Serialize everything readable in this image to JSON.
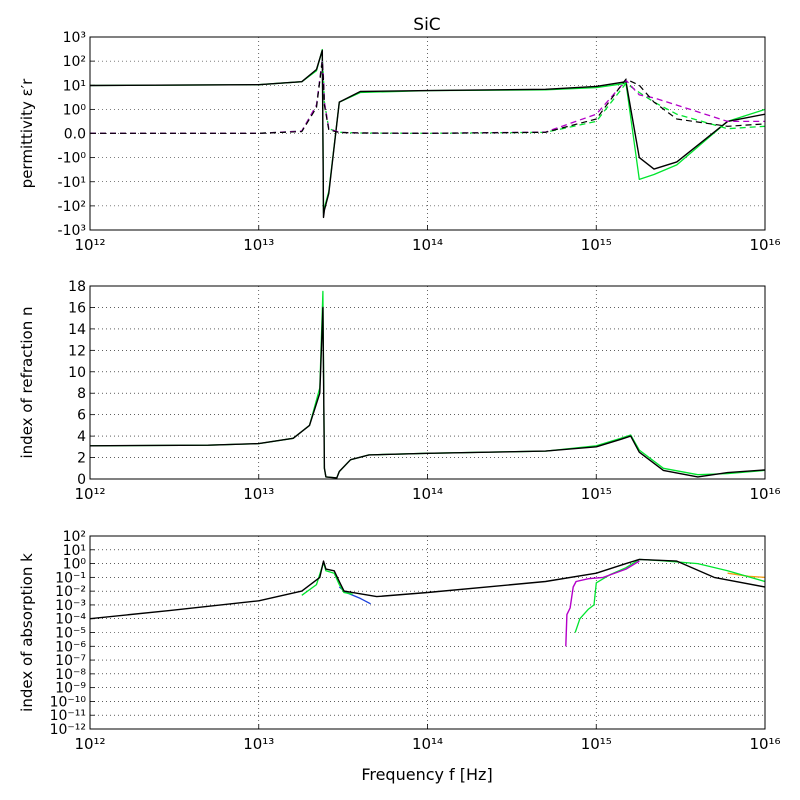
{
  "title": "SiC",
  "colors": {
    "black": "#000000",
    "green": "#00e52e",
    "blue": "#1a3fdc",
    "purple": "#b400c8",
    "orange": "#f39c12",
    "grid": "#000000"
  },
  "chart_data": [
    {
      "type": "line",
      "name": "permittivity",
      "ylabel": "permittivity ε′r",
      "xscale": "log",
      "yscale": "symlog",
      "xlim": [
        1000000000000.0,
        1e+16
      ],
      "ylim": [
        -1000,
        1000
      ],
      "grid": true,
      "x_tick_labels": [
        "10¹²",
        "10¹³",
        "10¹⁴",
        "10¹⁵",
        "10¹⁶"
      ],
      "y_tick_labels": [
        "10³",
        "10²",
        "10¹",
        "10⁰",
        "0.0",
        "-10⁰",
        "-10¹",
        "-10²",
        "-10³"
      ],
      "x_points_hz": [
        1000000000000.0,
        10000000000000.0,
        18000000000000.0,
        22000000000000.0,
        23800000000000.0,
        24200000000000.0,
        24500000000000.0,
        26000000000000.0,
        30000000000000.0,
        40000000000000.0,
        100000000000000.0,
        500000000000000.0,
        1000000000000000.0,
        1500000000000000.0,
        1800000000000000.0,
        2200000000000000.0,
        3000000000000000.0,
        6000000000000000.0,
        1e+16
      ],
      "series": [
        {
          "values": [
            9.8,
            10.5,
            14,
            40,
            300,
            -200,
            -120,
            -25,
            2.0,
            5,
            6,
            6.5,
            8,
            12,
            -8,
            -5,
            -2,
            0.5,
            1.0
          ]
        },
        {
          "values": [
            9.8,
            10.5,
            14,
            45,
            280,
            -300,
            -150,
            -30,
            2.0,
            5.5,
            6,
            6.8,
            9,
            14,
            -1,
            -3,
            -1.5,
            0.5,
            0.8
          ]
        },
        {
          "values": [
            0.01,
            0.01,
            0.1,
            1.5,
            120,
            20,
            2,
            0.2,
            0.05,
            0.02,
            0.01,
            0.05,
            0.5,
            12,
            5,
            2,
            0.8,
            0.2,
            0.3
          ]
        },
        {
          "values": [
            0.01,
            0.01,
            0.1,
            1.5,
            110,
            18,
            2,
            0.2,
            0.05,
            0.02,
            0.01,
            0.06,
            0.8,
            16,
            4,
            3,
            1.5,
            0.5,
            0.5
          ]
        },
        {
          "values": [
            0.01,
            0.01,
            0.08,
            1.2,
            100,
            15,
            1.5,
            0.15,
            0.04,
            0.02,
            0.01,
            0.05,
            0.6,
            18,
            10,
            2,
            0.6,
            0.3,
            0.4
          ]
        }
      ]
    },
    {
      "type": "line",
      "name": "refraction",
      "ylabel": "index of refraction n",
      "xscale": "log",
      "yscale": "linear",
      "xlim": [
        1000000000000.0,
        1e+16
      ],
      "ylim": [
        0,
        18
      ],
      "yticks": [
        0,
        2,
        4,
        6,
        8,
        10,
        12,
        14,
        16,
        18
      ],
      "grid": true,
      "x_tick_labels": [
        "10¹²",
        "10¹³",
        "10¹⁴",
        "10¹⁵",
        "10¹⁶"
      ],
      "x_points_hz": [
        1000000000000.0,
        5000000000000.0,
        10000000000000.0,
        16000000000000.0,
        20000000000000.0,
        23000000000000.0,
        24000000000000.0,
        24500000000000.0,
        25000000000000.0,
        29000000000000.0,
        30000000000000.0,
        35000000000000.0,
        45000000000000.0,
        100000000000000.0,
        500000000000000.0,
        1000000000000000.0,
        1400000000000000.0,
        1600000000000000.0,
        1800000000000000.0,
        2500000000000000.0,
        4000000000000000.0,
        6000000000000000.0,
        1e+16
      ],
      "series": [
        {
          "values": [
            3.1,
            3.15,
            3.3,
            3.8,
            5.0,
            8.0,
            16.0,
            1.0,
            0.2,
            0.1,
            0.7,
            1.8,
            2.25,
            2.4,
            2.6,
            3.0,
            3.7,
            4.0,
            2.5,
            0.8,
            0.2,
            0.6,
            0.85
          ]
        },
        {
          "values": [
            3.1,
            3.15,
            3.3,
            3.8,
            5.0,
            8.5,
            17.5,
            1.0,
            0.2,
            0.1,
            0.7,
            1.8,
            2.25,
            2.4,
            2.6,
            3.1,
            3.8,
            4.1,
            2.7,
            1.0,
            0.4,
            0.5,
            0.8
          ]
        }
      ]
    },
    {
      "type": "line",
      "name": "absorption",
      "ylabel": "index of absorption k",
      "xscale": "log",
      "yscale": "log",
      "xlim": [
        1000000000000.0,
        1e+16
      ],
      "ylim": [
        1e-12,
        100
      ],
      "grid": true,
      "x_tick_labels": [
        "10¹²",
        "10¹³",
        "10¹⁴",
        "10¹⁵",
        "10¹⁶"
      ],
      "y_tick_labels": [
        "10²",
        "10¹",
        "10⁰",
        "10⁻¹",
        "10⁻²",
        "10⁻³",
        "10⁻⁴",
        "10⁻⁵",
        "10⁻⁶",
        "10⁻⁷",
        "10⁻⁸",
        "10⁻⁹",
        "10⁻¹⁰",
        "10⁻¹¹",
        "10⁻¹²"
      ],
      "series": [
        {
          "x": [
            1000000000000.0,
            3000000000000.0,
            10000000000000.0,
            18000000000000.0,
            23000000000000.0,
            24200000000000.0,
            25000000000000.0,
            28000000000000.0,
            30000000000000.0,
            32000000000000.0,
            50000000000000.0,
            100000000000000.0,
            500000000000000.0,
            1000000000000000.0,
            1500000000000000.0,
            1800000000000000.0,
            3000000000000000.0,
            5000000000000000.0,
            1e+16
          ],
          "y": [
            0.0001,
            0.0004,
            0.002,
            0.01,
            0.1,
            1.5,
            0.4,
            0.3,
            0.05,
            0.01,
            0.004,
            0.008,
            0.05,
            0.2,
            1.0,
            2.0,
            1.5,
            0.1,
            0.02
          ]
        },
        {
          "x": [
            18000000000000.0,
            22000000000000.0,
            24200000000000.0,
            25000000000000.0,
            28000000000000.0,
            30000000000000.0,
            32000000000000.0,
            36000000000000.0
          ],
          "y": [
            0.005,
            0.03,
            1.2,
            0.3,
            0.2,
            0.03,
            0.008,
            0.006
          ]
        },
        {
          "x": [
            30000000000000.0,
            33000000000000.0,
            40000000000000.0,
            46000000000000.0
          ],
          "y": [
            0.02,
            0.008,
            0.003,
            0.0012
          ]
        },
        {
          "x": [
            660000000000000.0,
            670000000000000.0,
            700000000000000.0,
            730000000000000.0,
            760000000000000.0,
            900000000000000.0,
            1100000000000000.0,
            1500000000000000.0,
            1800000000000000.0
          ],
          "y": [
            1e-06,
            0.0002,
            0.0006,
            0.02,
            0.05,
            0.08,
            0.1,
            0.4,
            1.5
          ]
        },
        {
          "x": [
            750000000000000.0,
            800000000000000.0,
            900000000000000.0,
            970000000000000.0,
            1000000000000000.0,
            1200000000000000.0,
            1500000000000000.0,
            1800000000000000.0,
            2500000000000000.0,
            4000000000000000.0,
            6000000000000000.0,
            1e+16
          ],
          "y": [
            1e-05,
            0.0001,
            0.0005,
            0.001,
            0.04,
            0.15,
            0.5,
            2.0,
            1.6,
            1.0,
            0.3,
            0.05
          ]
        },
        {
          "x": [
            6000000000000000.0,
            8000000000000000.0,
            1e+16
          ],
          "y": [
            0.2,
            0.12,
            0.1
          ]
        }
      ]
    }
  ],
  "xlabel": "Frequency f [Hz]"
}
